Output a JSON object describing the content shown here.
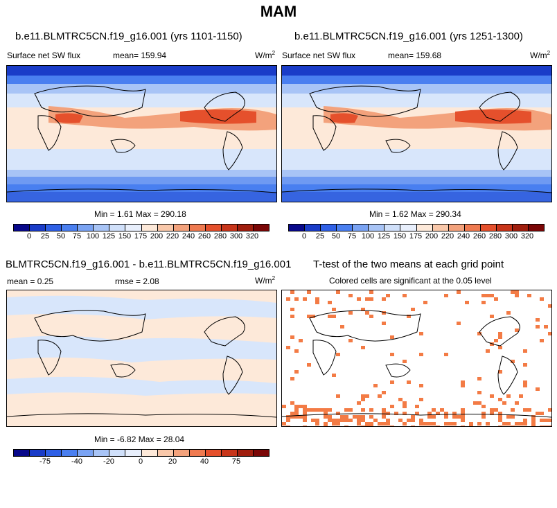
{
  "figure_title": "MAM",
  "top_left": {
    "title": "b.e11.BLMTRC5CN.f19_g16.001 (yrs 1101-1150)",
    "variable": "Surface net SW flux",
    "mean": "mean= 159.94",
    "units": "W/m",
    "units_sup": "2",
    "minmax": "Min =   1.61 Max = 290.18"
  },
  "top_right": {
    "title": "b.e11.BLMTRC5CN.f19_g16.001 (yrs 1251-1300)",
    "variable": "Surface net SW flux",
    "mean": "mean= 159.68",
    "units": "W/m",
    "units_sup": "2",
    "minmax": "Min =   1.62 Max = 290.34"
  },
  "bottom_left": {
    "title": "BLMTRC5CN.f19_g16.001 - b.e11.BLMTRC5CN.f19_g16.001",
    "mean": "mean =   0.25",
    "rmse": "rmse =   2.08",
    "units": "W/m",
    "units_sup": "2",
    "minmax": "Min =  -6.82 Max =  28.04"
  },
  "bottom_right": {
    "title": "T-test of the two means at each grid point",
    "subtitle": "Colored cells are significant at the 0.05 level"
  },
  "colorbar_abs": {
    "labels": [
      "0",
      "25",
      "50",
      "75",
      "100",
      "125",
      "150",
      "175",
      "200",
      "220",
      "240",
      "260",
      "280",
      "300",
      "320"
    ],
    "colors": [
      "#08088a",
      "#1a3cc8",
      "#2f60e6",
      "#4a7ff0",
      "#7aa3f3",
      "#a8c4f6",
      "#d0e0fa",
      "#e8effc",
      "#fde9d9",
      "#f9c8aa",
      "#f3a27c",
      "#ef7a50",
      "#e5502c",
      "#c8351a",
      "#a01e0e",
      "#7a0606"
    ]
  },
  "colorbar_diff": {
    "labels": [
      "-75",
      "-40",
      "-20",
      "0",
      "20",
      "40",
      "75"
    ],
    "colors": [
      "#08088a",
      "#1a3cc8",
      "#2f60e6",
      "#4a7ff0",
      "#7aa3f3",
      "#a8c4f6",
      "#d0e0fa",
      "#e8effc",
      "#fde9d9",
      "#f9c8aa",
      "#f3a27c",
      "#ef7a50",
      "#e5502c",
      "#c8351a",
      "#a01e0e",
      "#7a0606"
    ]
  },
  "colors": {
    "polar_blue": "#1a3cc8",
    "mid_blue": "#4a7ff0",
    "light_blue": "#a8c4f6",
    "pale_blue": "#d8e6fb",
    "pale_peach": "#fde9d9",
    "peach": "#f3a27c",
    "hot": "#e5502c",
    "sig": "#f37b45"
  }
}
